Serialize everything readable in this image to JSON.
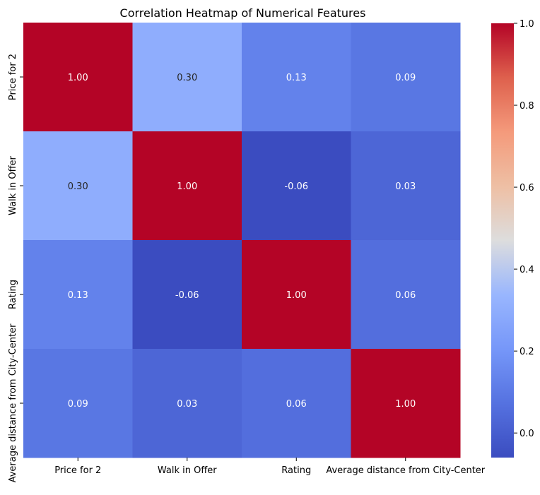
{
  "chart_data": {
    "type": "heatmap",
    "title": "Correlation Heatmap of Numerical Features",
    "rows": [
      "Price for 2",
      "Walk in Offer",
      "Rating",
      "Average distance from City-Center"
    ],
    "columns": [
      "Price for 2",
      "Walk in Offer",
      "Rating",
      "Average distance from City-Center"
    ],
    "values": [
      [
        1.0,
        0.3,
        0.13,
        0.09
      ],
      [
        0.3,
        1.0,
        -0.06,
        0.03
      ],
      [
        0.13,
        -0.06,
        1.0,
        0.06
      ],
      [
        0.09,
        0.03,
        0.06,
        1.0
      ]
    ],
    "value_labels": [
      [
        "1.00",
        "0.30",
        "0.13",
        "0.09"
      ],
      [
        "0.30",
        "1.00",
        "-0.06",
        "0.03"
      ],
      [
        "0.13",
        "-0.06",
        "1.00",
        "0.06"
      ],
      [
        "0.09",
        "0.03",
        "0.06",
        "1.00"
      ]
    ],
    "colormap": "coolwarm",
    "color_range": [
      -0.06,
      1.0
    ],
    "colorbar_ticks": [
      "0.0",
      "0.2",
      "0.4",
      "0.6",
      "0.8",
      "1.0"
    ],
    "colorbar_tick_values": [
      0.0,
      0.2,
      0.4,
      0.6,
      0.8,
      1.0
    ]
  }
}
